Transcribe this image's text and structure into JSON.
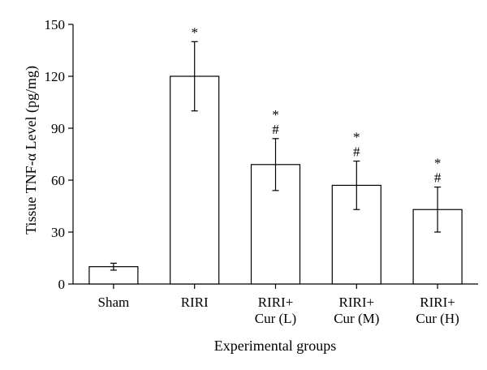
{
  "chart_data": {
    "type": "bar",
    "categories": [
      [
        "Sham"
      ],
      [
        "RIRI"
      ],
      [
        "RIRI+",
        "Cur (L)"
      ],
      [
        "RIRI+",
        "Cur (M)"
      ],
      [
        "RIRI+",
        "Cur (H)"
      ]
    ],
    "values": [
      10,
      120,
      69,
      57,
      43
    ],
    "errors": [
      2,
      20,
      15,
      14,
      13
    ],
    "annotations": [
      [],
      [
        "*"
      ],
      [
        "*",
        "#"
      ],
      [
        "*",
        "#"
      ],
      [
        "*",
        "#"
      ]
    ],
    "xlabel": "Experimental groups",
    "ylabel": "Tissue TNF-α Level (pg/mg)",
    "ylim": [
      0,
      150
    ],
    "yticks": [
      0,
      30,
      60,
      90,
      120,
      150
    ],
    "grid": false,
    "legend": "none",
    "bar_fill": "#ffffff",
    "bar_stroke": "#000000"
  }
}
